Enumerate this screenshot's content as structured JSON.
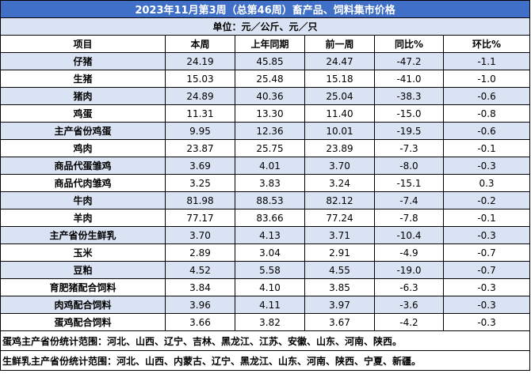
{
  "title": "2023年11月第3周（总第46周）畜产品、饲料集市价格",
  "unit": "单位：元／公斤、元／只",
  "table": {
    "header": [
      "项目",
      "本周",
      "上年同期",
      "前一周",
      "同比%",
      "环比%"
    ],
    "rows": [
      [
        "仔猪",
        "24.19",
        "45.85",
        "24.47",
        "-47.2",
        "-1.1"
      ],
      [
        "生猪",
        "15.03",
        "25.48",
        "15.18",
        "-41.0",
        "-1.0"
      ],
      [
        "猪肉",
        "24.89",
        "40.36",
        "25.04",
        "-38.3",
        "-0.6"
      ],
      [
        "鸡蛋",
        "11.31",
        "13.30",
        "11.40",
        "-15.0",
        "-0.8"
      ],
      [
        "主产省份鸡蛋",
        "9.95",
        "12.36",
        "10.01",
        "-19.5",
        "-0.6"
      ],
      [
        "鸡肉",
        "23.87",
        "25.75",
        "23.89",
        "-7.3",
        "-0.1"
      ],
      [
        "商品代蛋雏鸡",
        "3.69",
        "4.01",
        "3.70",
        "-8.0",
        "-0.3"
      ],
      [
        "商品代肉雏鸡",
        "3.25",
        "3.83",
        "3.24",
        "-15.1",
        "0.3"
      ],
      [
        "牛肉",
        "81.98",
        "88.53",
        "82.12",
        "-7.4",
        "-0.2"
      ],
      [
        "羊肉",
        "77.17",
        "83.66",
        "77.24",
        "-7.8",
        "-0.1"
      ],
      [
        "主产省份生鲜乳",
        "3.70",
        "4.13",
        "3.71",
        "-10.4",
        "-0.3"
      ],
      [
        "玉米",
        "2.89",
        "3.04",
        "2.91",
        "-4.9",
        "-0.7"
      ],
      [
        "豆粕",
        "4.52",
        "5.58",
        "4.55",
        "-19.0",
        "-0.7"
      ],
      [
        "育肥猪配合饲料",
        "3.84",
        "4.10",
        "3.85",
        "-6.3",
        "-0.3"
      ],
      [
        "肉鸡配合饲料",
        "3.96",
        "4.11",
        "3.97",
        "-3.6",
        "-0.3"
      ],
      [
        "蛋鸡配合饲料",
        "3.66",
        "3.82",
        "3.67",
        "-4.2",
        "-0.3"
      ]
    ]
  },
  "notes": [
    "蛋鸡主产省份统计范围：河北、山西、辽宁、吉林、黑龙江、江苏、安徽、山东、河南、陕西。",
    "生鲜乳主产省份统计范围：河北、山西、内蒙古、辽宁、黑龙江、山东、河南、陕西、宁夏、新疆。"
  ]
}
